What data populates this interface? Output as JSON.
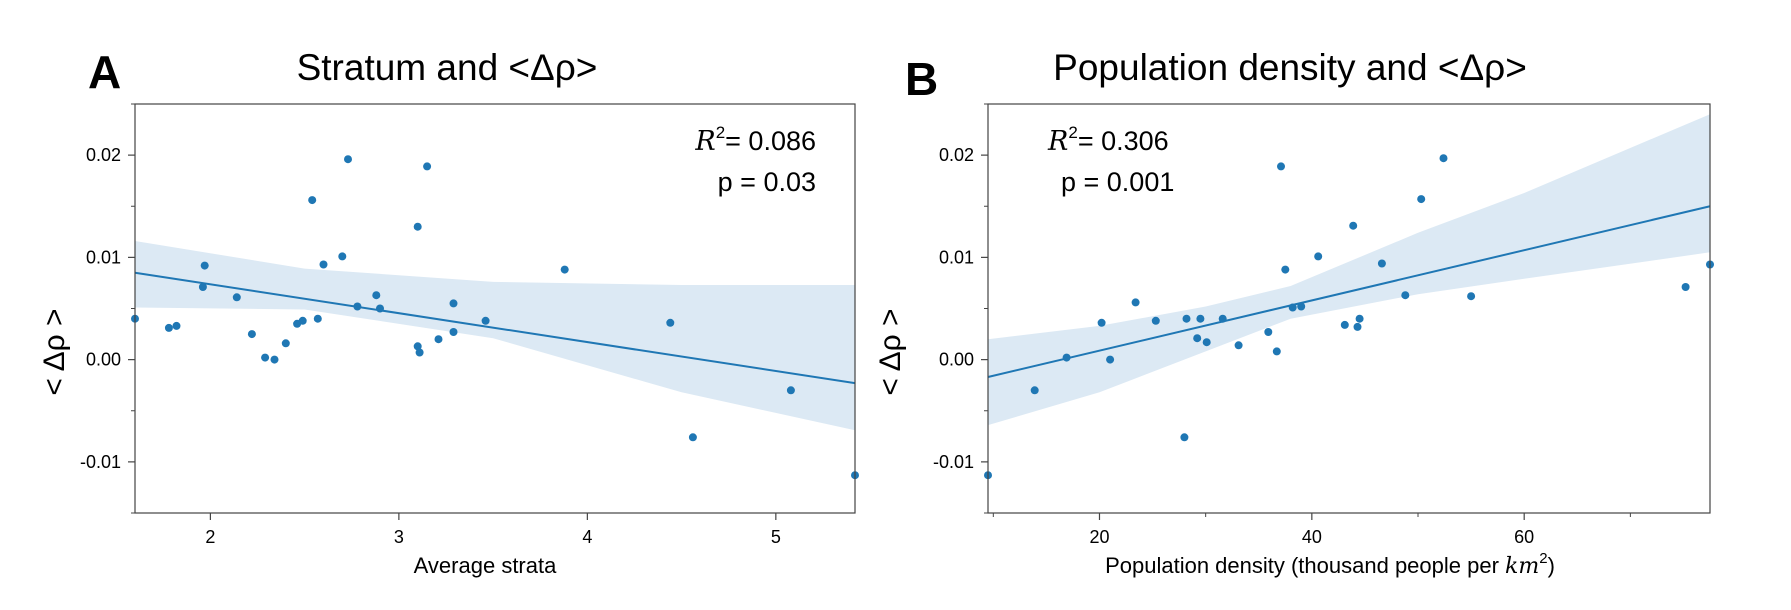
{
  "chart_data": [
    {
      "type": "scatter",
      "panel": "A",
      "title": "Stratum and <Δρ>",
      "xlabel": "Average strata",
      "ylabel": "< Δρ >",
      "xlim": [
        1.6,
        5.42
      ],
      "ylim": [
        -0.015,
        0.025
      ],
      "xticks": [
        2,
        3,
        4,
        5
      ],
      "xtick_labels": [
        "2",
        "3",
        "4",
        "5"
      ],
      "yticks": [
        -0.01,
        0.0,
        0.01,
        0.02
      ],
      "ytick_labels": [
        "-0.01",
        "0.00",
        "0.01",
        "0.02"
      ],
      "annotation": {
        "r2_label": "R",
        "r2_sup": "2",
        "r2_value": "= 0.086",
        "p_text": "p = 0.03"
      },
      "points": [
        [
          1.6,
          0.004
        ],
        [
          1.78,
          0.0031
        ],
        [
          1.82,
          0.0033
        ],
        [
          1.96,
          0.0071
        ],
        [
          1.97,
          0.0092
        ],
        [
          2.14,
          0.0061
        ],
        [
          2.22,
          0.0025
        ],
        [
          2.29,
          0.0002
        ],
        [
          2.34,
          0.0
        ],
        [
          2.4,
          0.0016
        ],
        [
          2.46,
          0.0035
        ],
        [
          2.49,
          0.0038
        ],
        [
          2.54,
          0.0156
        ],
        [
          2.57,
          0.004
        ],
        [
          2.6,
          0.0093
        ],
        [
          2.7,
          0.0101
        ],
        [
          2.73,
          0.0196
        ],
        [
          2.78,
          0.0052
        ],
        [
          2.88,
          0.0063
        ],
        [
          2.9,
          0.005
        ],
        [
          3.1,
          0.013
        ],
        [
          3.1,
          0.0013
        ],
        [
          3.11,
          0.0007
        ],
        [
          3.15,
          0.0189
        ],
        [
          3.21,
          0.002
        ],
        [
          3.29,
          0.0027
        ],
        [
          3.29,
          0.0055
        ],
        [
          3.46,
          0.0038
        ],
        [
          3.88,
          0.0088
        ],
        [
          4.44,
          0.0036
        ],
        [
          4.56,
          -0.0076
        ],
        [
          5.08,
          -0.003
        ],
        [
          5.42,
          -0.0113
        ]
      ],
      "fit": {
        "x": [
          1.6,
          5.42
        ],
        "y": [
          0.0085,
          -0.0023
        ]
      },
      "band": {
        "x": [
          1.6,
          2.5,
          3.5,
          4.5,
          5.42
        ],
        "upper": [
          0.0116,
          0.0089,
          0.0076,
          0.0073,
          0.0073
        ],
        "lower": [
          0.0051,
          0.0049,
          0.0021,
          -0.0032,
          -0.0069
        ]
      }
    },
    {
      "type": "scatter",
      "panel": "B",
      "title": "Population density and <Δρ>",
      "xlabel_prefix": "Population density (thousand people per ",
      "xlabel_math": "km",
      "xlabel_sup": "2",
      "xlabel_suffix": ")",
      "ylabel": "< Δρ >",
      "xlim": [
        9.5,
        77.5
      ],
      "ylim": [
        -0.015,
        0.025
      ],
      "xticks": [
        20,
        40,
        60
      ],
      "xtick_labels": [
        "20",
        "40",
        "60"
      ],
      "xminor": [
        10,
        30,
        50,
        70
      ],
      "yticks": [
        -0.01,
        0.0,
        0.01,
        0.02
      ],
      "ytick_labels": [
        "-0.01",
        "0.00",
        "0.01",
        "0.02"
      ],
      "annotation": {
        "r2_label": "R",
        "r2_sup": "2",
        "r2_value": "= 0.306",
        "p_text": "p = 0.001"
      },
      "points": [
        [
          9.5,
          -0.0113
        ],
        [
          13.9,
          -0.003
        ],
        [
          16.9,
          0.0002
        ],
        [
          20.2,
          0.0036
        ],
        [
          21.0,
          0.0
        ],
        [
          23.4,
          0.0056
        ],
        [
          25.3,
          0.0038
        ],
        [
          28.0,
          -0.0076
        ],
        [
          28.2,
          0.004
        ],
        [
          29.2,
          0.0021
        ],
        [
          29.5,
          0.004
        ],
        [
          30.1,
          0.0017
        ],
        [
          31.6,
          0.004
        ],
        [
          33.1,
          0.0014
        ],
        [
          35.9,
          0.0027
        ],
        [
          36.7,
          0.0008
        ],
        [
          37.1,
          0.0189
        ],
        [
          37.5,
          0.0088
        ],
        [
          38.2,
          0.0051
        ],
        [
          39.0,
          0.0052
        ],
        [
          40.6,
          0.0101
        ],
        [
          43.1,
          0.0034
        ],
        [
          43.9,
          0.0131
        ],
        [
          44.3,
          0.0032
        ],
        [
          44.5,
          0.004
        ],
        [
          46.6,
          0.0094
        ],
        [
          48.8,
          0.0063
        ],
        [
          50.3,
          0.0157
        ],
        [
          52.4,
          0.0197
        ],
        [
          55.0,
          0.0062
        ],
        [
          75.2,
          0.0071
        ],
        [
          77.5,
          0.0093
        ]
      ],
      "fit": {
        "x": [
          9.5,
          77.5
        ],
        "y": [
          -0.0017,
          0.015
        ]
      },
      "band": {
        "x": [
          9.5,
          20,
          30,
          38,
          50,
          60,
          77.5
        ],
        "upper": [
          0.002,
          0.0033,
          0.0052,
          0.0072,
          0.0124,
          0.0163,
          0.024
        ],
        "lower": [
          -0.0064,
          -0.0032,
          0.0008,
          0.004,
          0.0064,
          0.0079,
          0.0105
        ]
      }
    }
  ],
  "colors": {
    "marker": "#1f77b4",
    "line": "#1f77b4",
    "band": "#dce9f4",
    "axes": "#444444"
  }
}
